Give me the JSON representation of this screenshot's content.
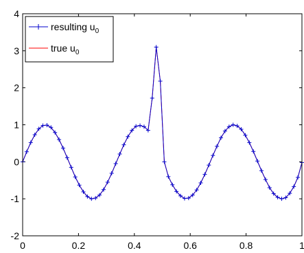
{
  "chart_data": {
    "type": "line",
    "xlim": [
      0,
      1
    ],
    "ylim": [
      -2,
      4
    ],
    "x_ticks": [
      0,
      0.2,
      0.4,
      0.6,
      0.8,
      1
    ],
    "x_tick_labels": [
      "0",
      "0.2",
      "0.4",
      "0.6",
      "0.8",
      "1"
    ],
    "y_ticks": [
      -2,
      -1,
      0,
      1,
      2,
      3,
      4
    ],
    "y_tick_labels": [
      "-2",
      "-1",
      "0",
      "1",
      "2",
      "3",
      "4"
    ],
    "grid": false,
    "legend_position": "top-left",
    "x": [
      0,
      0.0145,
      0.029,
      0.0435,
      0.058,
      0.0725,
      0.087,
      0.1014,
      0.1159,
      0.1304,
      0.1449,
      0.1594,
      0.1739,
      0.1884,
      0.2029,
      0.2174,
      0.2319,
      0.2464,
      0.2609,
      0.2754,
      0.2899,
      0.3043,
      0.3188,
      0.3333,
      0.3478,
      0.3623,
      0.3768,
      0.3913,
      0.4058,
      0.4203,
      0.4348,
      0.4493,
      0.4638,
      0.4783,
      0.4928,
      0.5072,
      0.5217,
      0.5362,
      0.5507,
      0.5652,
      0.5797,
      0.5942,
      0.6087,
      0.6232,
      0.6377,
      0.6522,
      0.6667,
      0.6812,
      0.6957,
      0.7101,
      0.7246,
      0.7391,
      0.7536,
      0.7681,
      0.7826,
      0.7971,
      0.8116,
      0.8261,
      0.8406,
      0.8551,
      0.8696,
      0.8841,
      0.8986,
      0.913,
      0.9275,
      0.942,
      0.9565,
      0.971,
      0.9855,
      1
    ],
    "series": [
      {
        "name": "resulting u",
        "name_subscript": "0",
        "color": "#0000cc",
        "marker": "+",
        "values": [
          0,
          0.27,
          0.52,
          0.73,
          0.89,
          0.98,
          0.99,
          0.93,
          0.79,
          0.6,
          0.37,
          0.11,
          -0.15,
          -0.41,
          -0.63,
          -0.81,
          -0.94,
          -1.0,
          -0.98,
          -0.9,
          -0.75,
          -0.55,
          -0.31,
          -0.05,
          0.21,
          0.46,
          0.68,
          0.85,
          0.96,
          0.98,
          0.95,
          0.85,
          1.72,
          3.1,
          2.18,
          0.0,
          -0.4,
          -0.62,
          -0.8,
          -0.92,
          -0.99,
          -0.98,
          -0.9,
          -0.76,
          -0.57,
          -0.34,
          -0.09,
          0.17,
          0.42,
          0.65,
          0.83,
          0.95,
          1.0,
          0.97,
          0.88,
          0.72,
          0.52,
          0.28,
          0.02,
          -0.24,
          -0.48,
          -0.7,
          -0.86,
          -0.96,
          -1.0,
          -0.97,
          -0.85,
          -0.67,
          -0.42,
          -0.02
        ]
      },
      {
        "name": "true u",
        "name_subscript": "0",
        "color": "#ff0000",
        "marker": "none",
        "values": [
          0,
          0.27,
          0.52,
          0.73,
          0.89,
          0.98,
          0.99,
          0.93,
          0.79,
          0.6,
          0.37,
          0.11,
          -0.15,
          -0.41,
          -0.63,
          -0.81,
          -0.94,
          -1.0,
          -0.98,
          -0.9,
          -0.75,
          -0.55,
          -0.31,
          -0.05,
          0.21,
          0.46,
          0.68,
          0.85,
          0.96,
          0.98,
          0.95,
          0.85,
          1.72,
          3.1,
          2.18,
          0.0,
          -0.4,
          -0.62,
          -0.8,
          -0.92,
          -0.99,
          -0.98,
          -0.9,
          -0.76,
          -0.57,
          -0.34,
          -0.09,
          0.17,
          0.42,
          0.65,
          0.83,
          0.95,
          1.0,
          0.97,
          0.88,
          0.72,
          0.52,
          0.28,
          0.02,
          -0.24,
          -0.48,
          -0.7,
          -0.86,
          -0.96,
          -1.0,
          -0.97,
          -0.85,
          -0.67,
          -0.42,
          -0.02
        ]
      }
    ]
  }
}
